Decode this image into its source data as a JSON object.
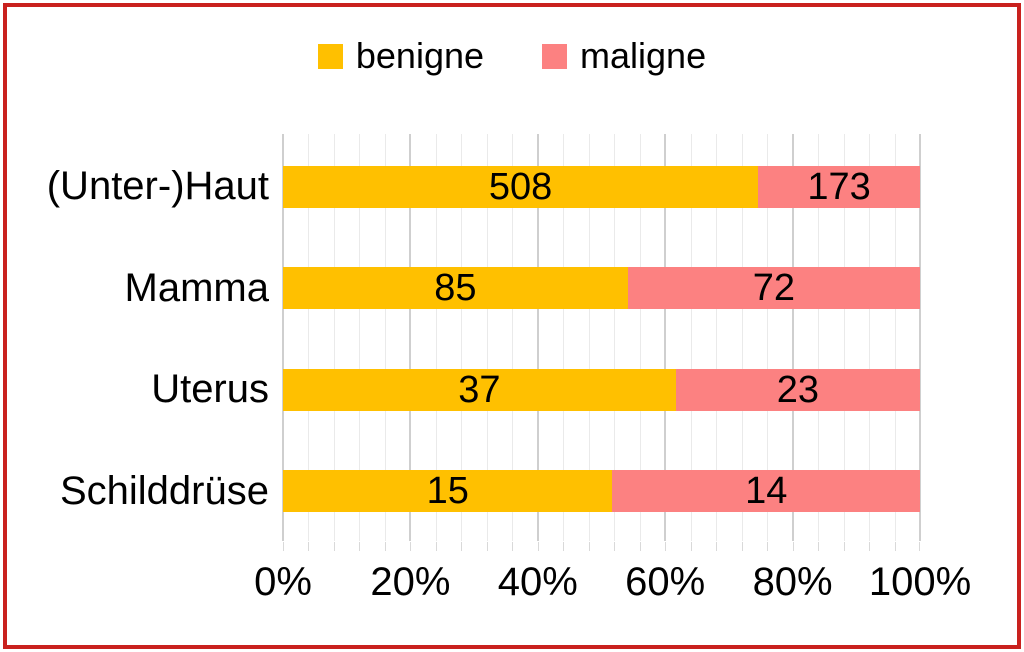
{
  "frame": {
    "border_color": "#c9211e"
  },
  "colors": {
    "benigne": "#ffc000",
    "maligne": "#fc8181",
    "minor_gridline": "#eaeaea",
    "major_gridline": "#cfcfcf",
    "tick": "#d9d9d9",
    "text": "#000000",
    "background": "#ffffff"
  },
  "chart_data": {
    "type": "bar",
    "orientation": "horizontal",
    "stacked": true,
    "stacked_mode": "percent",
    "title": "",
    "categories": [
      "(Unter-)Haut",
      "Mamma",
      "Uterus",
      "Schilddrüse"
    ],
    "series": [
      {
        "name": "benigne",
        "color": "#ffc000",
        "values": [
          508,
          85,
          37,
          15
        ]
      },
      {
        "name": "maligne",
        "color": "#fc8181",
        "values": [
          173,
          72,
          23,
          14
        ]
      }
    ],
    "xlabel": "",
    "ylabel": "",
    "x_axis": {
      "range_percent": [
        0,
        100
      ],
      "tick_labels": [
        "0%",
        "20%",
        "40%",
        "60%",
        "80%",
        "100%"
      ],
      "major_step_percent": 20,
      "minor_step_percent": 4
    },
    "grid": true,
    "legend_position": "top",
    "data_labels": "inside-center"
  }
}
